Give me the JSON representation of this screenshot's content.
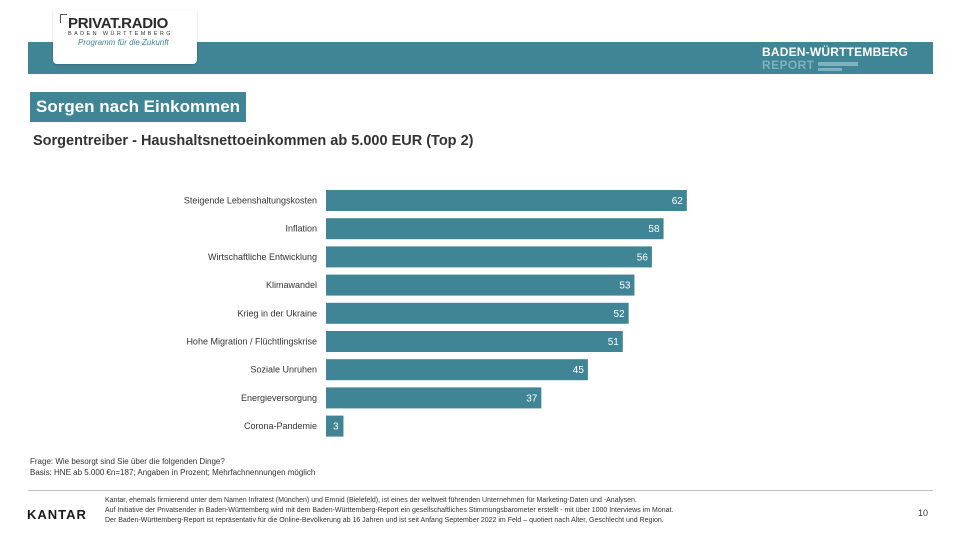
{
  "logo": {
    "name": "PRIVAT.RADIO",
    "region": "BADEN WÜRTTEMBERG",
    "tagline": "Programm für die Zukunft"
  },
  "report": {
    "title": "BADEN-WÜRTTEMBERG",
    "subtitle": "REPORT"
  },
  "section_title": "Sorgen nach Einkommen",
  "subtitle": "Sorgentreiber - Haushaltsnettoeinkommen ab 5.000 EUR (Top 2)",
  "chart_data": {
    "type": "bar",
    "orientation": "horizontal",
    "categories": [
      "Steigende Lebenshaltungskosten",
      "Inflation",
      "Wirtschaftliche Entwicklung",
      "Klimawandel",
      "Krieg in der Ukraine",
      "Hohe Migration / Flüchtlingskrise",
      "Soziale Unruhen",
      "Energieversorgung",
      "Corona-Pandemie"
    ],
    "values": [
      62,
      58,
      56,
      53,
      52,
      51,
      45,
      37,
      3
    ],
    "xlim": [
      0,
      100
    ],
    "bar_color": "#3f8595",
    "grid": false,
    "data_labels": true
  },
  "notes": {
    "question": "Frage: Wie besorgt sind Sie über die folgenden Dinge?",
    "base": "Basis: HNE ab 5.000 €n=187; Angaben in Prozent; Mehrfachnennungen möglich"
  },
  "footer": {
    "brand": "KANTAR",
    "line1": "Kantar, ehemals firmierend unter dem Namen Infratest (München) und Emnid (Bielefeld), ist eines der weltweit führenden Unternehmen für Marketing-Daten und -Analysen.",
    "line2": "Auf Initiative der Privatsender in Baden-Württemberg wird mit dem Baden-Württemberg-Report ein gesellschaftliches Stimmungsbarometer erstellt - mit über 1000 Interviews im Monat.",
    "line3": "Der Baden-Württemberg-Report ist repräsentativ für die Online-Bevölkerung ab 16 Jahren und ist seit Anfang September 2022 im Feld – quotiert nach Alter, Geschlecht und Region.",
    "page_number": "10"
  }
}
